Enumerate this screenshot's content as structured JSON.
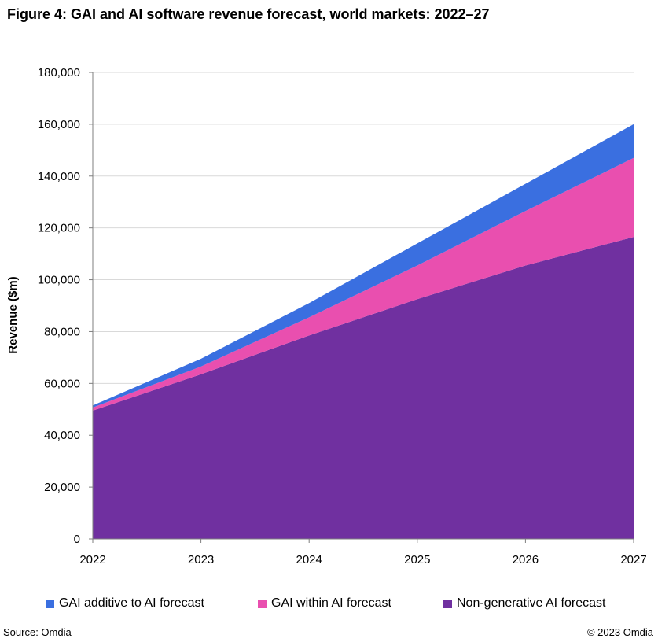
{
  "chart_data": {
    "type": "area",
    "stacked": true,
    "title": "Figure 4: GAI and AI software revenue forecast, world markets: 2022–27",
    "ylabel": "Revenue ($m)",
    "xlabel": "",
    "x": [
      "2022",
      "2023",
      "2024",
      "2025",
      "2026",
      "2027"
    ],
    "ylim": [
      0,
      180000
    ],
    "yticks": [
      0,
      20000,
      40000,
      60000,
      80000,
      100000,
      120000,
      140000,
      160000,
      180000
    ],
    "ytick_labels": [
      "0",
      "20,000",
      "40,000",
      "60,000",
      "80,000",
      "100,000",
      "120,000",
      "140,000",
      "160,000",
      "180,000"
    ],
    "grid": true,
    "legend_position": "bottom",
    "series": [
      {
        "name": "Non-generative AI forecast",
        "color": "#7030a0",
        "values": [
          49500,
          63500,
          78500,
          92500,
          105500,
          116500
        ]
      },
      {
        "name": "GAI within AI forecast",
        "color": "#e94faf",
        "values": [
          1200,
          3000,
          7000,
          13000,
          21000,
          30500
        ]
      },
      {
        "name": "GAI additive to AI forecast",
        "color": "#3a6fe0",
        "values": [
          800,
          3000,
          5500,
          8500,
          10500,
          13000
        ]
      }
    ],
    "legend_order": [
      2,
      1,
      0
    ]
  },
  "footer": {
    "source": "Source: Omdia",
    "copyright": "© 2023 Omdia"
  }
}
